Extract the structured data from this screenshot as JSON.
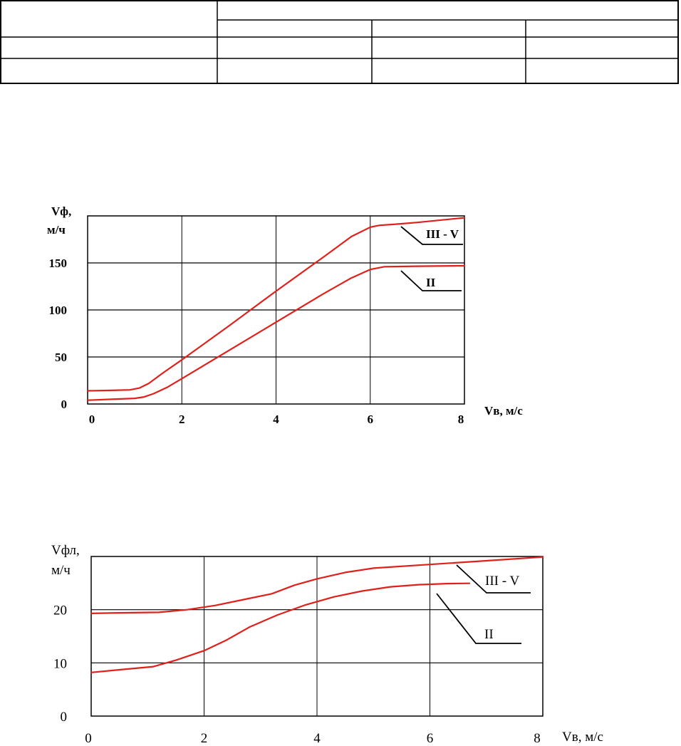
{
  "colors": {
    "curve": "#e0201a",
    "ink": "#000000",
    "background": "#ffffff"
  },
  "table": {
    "columns": 4,
    "header_rows": 2,
    "body_rows": 2,
    "cells_text": []
  },
  "chart_data": [
    {
      "type": "line",
      "title": "",
      "ylabel": "Vф,\nм/ч",
      "xlabel": "Vв, м/с",
      "xlim": [
        0,
        8
      ],
      "ylim": [
        0,
        200
      ],
      "xticks": [
        0,
        2,
        4,
        6,
        8
      ],
      "yticks": [
        0,
        50,
        100,
        150
      ],
      "grid": true,
      "series": [
        {
          "name": "III  - V",
          "x": [
            0,
            0.5,
            0.9,
            1.1,
            1.3,
            1.6,
            2,
            3,
            4,
            5,
            5.6,
            6,
            6.2,
            6.5,
            7,
            8
          ],
          "y": [
            14,
            14.5,
            15,
            17,
            22,
            33,
            47,
            83,
            120,
            156,
            178,
            188,
            190,
            191,
            193,
            198
          ]
        },
        {
          "name": "II",
          "x": [
            0,
            0.5,
            1,
            1.2,
            1.4,
            1.7,
            2,
            3,
            4,
            5,
            5.6,
            6,
            6.3,
            7,
            8
          ],
          "y": [
            4,
            5,
            6,
            7.5,
            11,
            18,
            27,
            57,
            87,
            117,
            134,
            143,
            146,
            146.5,
            147
          ]
        }
      ]
    },
    {
      "type": "line",
      "title": "",
      "ylabel": "Vфл,\nм/ч",
      "xlabel": "Vв, м/с",
      "xlim": [
        0,
        8
      ],
      "ylim": [
        0,
        30
      ],
      "xticks": [
        0,
        2,
        4,
        6,
        8
      ],
      "yticks": [
        0,
        10,
        20
      ],
      "grid": true,
      "series": [
        {
          "name": "III  - V",
          "x": [
            0,
            0.5,
            1.2,
            1.7,
            2.2,
            2.7,
            3.2,
            3.6,
            4,
            4.5,
            5,
            6,
            7,
            8
          ],
          "y": [
            19.3,
            19.4,
            19.5,
            20,
            20.8,
            21.9,
            23,
            24.6,
            25.8,
            27,
            27.8,
            28.5,
            29.2,
            29.9
          ]
        },
        {
          "name": "II",
          "x": [
            0,
            0.5,
            1.1,
            1.5,
            2,
            2.4,
            2.8,
            3.3,
            3.8,
            4.3,
            4.8,
            5.3,
            5.8,
            6.3,
            6.7
          ],
          "y": [
            8.2,
            8.7,
            9.3,
            10.5,
            12.3,
            14.3,
            16.7,
            19,
            20.9,
            22.4,
            23.5,
            24.3,
            24.7,
            24.9,
            24.95
          ]
        }
      ]
    }
  ]
}
